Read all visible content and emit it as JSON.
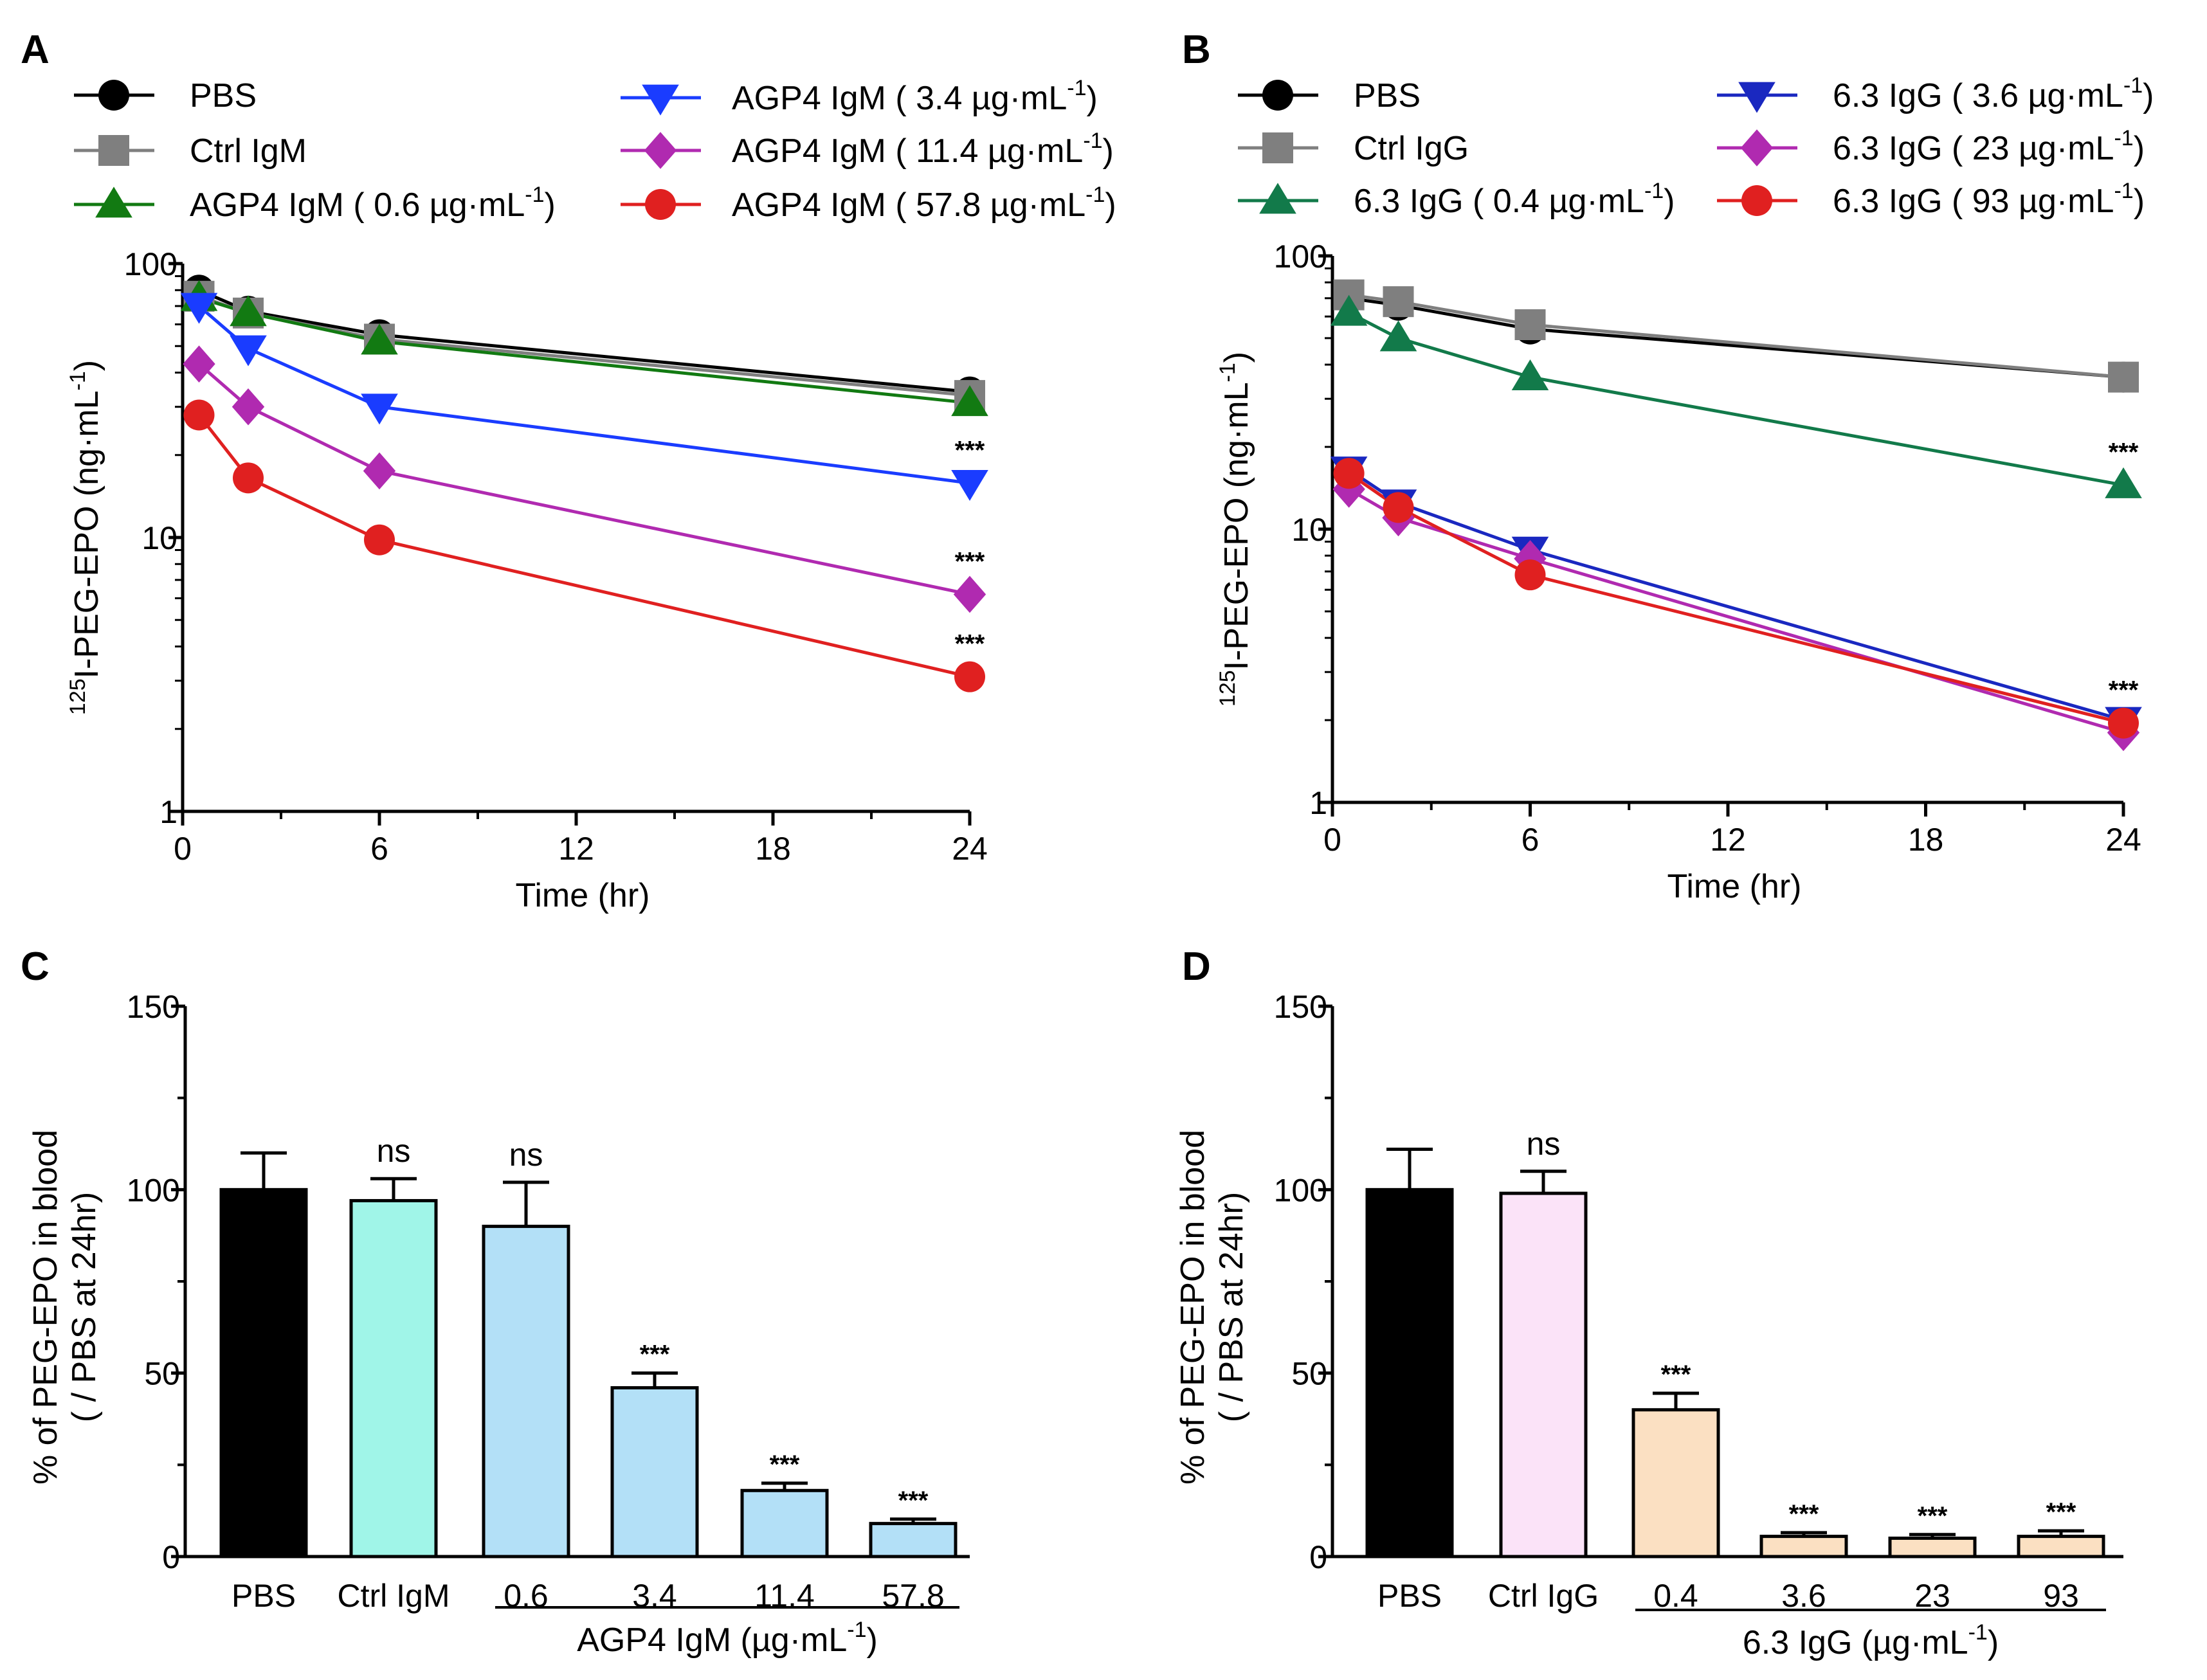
{
  "chart_data": [
    {
      "panel": "A",
      "type": "line",
      "yscale": "log",
      "xlabel": "Time (hr)",
      "ylabel_sup": "125",
      "ylabel": "I-PEG-EPO (ng·mL",
      "ylabel_unit_sup": "-1",
      "ylabel_tail": ")",
      "xlim": [
        0,
        24
      ],
      "ylim": [
        1,
        100
      ],
      "xticks": [
        "0",
        "6",
        "12",
        "18",
        "24"
      ],
      "yticks": [
        "1",
        "10",
        "100"
      ],
      "x": [
        0.5,
        2,
        6,
        24
      ],
      "series": [
        {
          "name": "PBS",
          "color": "#000000",
          "marker": "circle",
          "values": [
            80,
            67,
            55,
            34
          ]
        },
        {
          "name": "Ctrl IgM",
          "color": "#7f7f7f",
          "marker": "square",
          "values": [
            76,
            66,
            53,
            33
          ]
        },
        {
          "name": "AGP4 IgM ( 0.6 µg·mL",
          "sup": "-1",
          "close": ")",
          "color": "#127a12",
          "marker": "triangle-up",
          "values": [
            75,
            66,
            52,
            31
          ]
        },
        {
          "name": "AGP4 IgM ( 3.4 µg·mL",
          "sup": "-1",
          "close": ")",
          "color": "#1a3cff",
          "marker": "triangle-down",
          "values": [
            70,
            49,
            30,
            15.8
          ],
          "sig": "***"
        },
        {
          "name": "AGP4 IgM ( 11.4 µg·mL",
          "sup": "-1",
          "close": ")",
          "color": "#b02ab0",
          "marker": "diamond",
          "values": [
            43,
            30,
            17.5,
            6.2
          ],
          "sig": "***"
        },
        {
          "name": "AGP4 IgM ( 57.8 µg·mL",
          "sup": "-1",
          "close": ")",
          "color": "#e02020",
          "marker": "circle",
          "values": [
            28,
            16.5,
            9.8,
            3.1
          ],
          "sig": "***"
        }
      ]
    },
    {
      "panel": "B",
      "type": "line",
      "yscale": "log",
      "xlabel": "Time (hr)",
      "ylabel_sup": "125",
      "ylabel": "I-PEG-EPO (ng·mL",
      "ylabel_unit_sup": "-1",
      "ylabel_tail": ")",
      "xlim": [
        0,
        24
      ],
      "ylim": [
        1,
        100
      ],
      "xticks": [
        "0",
        "6",
        "12",
        "18",
        "24"
      ],
      "yticks": [
        "1",
        "10",
        "100"
      ],
      "x": [
        0.5,
        2,
        6,
        24
      ],
      "series": [
        {
          "name": "PBS",
          "color": "#000000",
          "marker": "circle",
          "values": [
            70,
            66,
            54,
            36
          ]
        },
        {
          "name": "Ctrl IgG",
          "color": "#7f7f7f",
          "marker": "square",
          "values": [
            72,
            68,
            56,
            36
          ]
        },
        {
          "name": "6.3 IgG ( 0.4 µg·mL",
          "sup": "-1",
          "close": ")",
          "color": "#127a4a",
          "marker": "triangle-up",
          "values": [
            62,
            50,
            36,
            14.5
          ],
          "sig": "***"
        },
        {
          "name": "6.3 IgG ( 3.6 µg·mL",
          "sup": "-1",
          "close": ")",
          "color": "#1a28c0",
          "marker": "triangle-down",
          "values": [
            16.5,
            12.5,
            8.4,
            2.0
          ]
        },
        {
          "name": "6.3 IgG ( 23 µg·mL",
          "sup": "-1",
          "close": ")",
          "color": "#b02ab0",
          "marker": "diamond",
          "values": [
            14,
            11,
            7.8,
            1.8
          ]
        },
        {
          "name": "6.3 IgG ( 93 µg·mL",
          "sup": "-1",
          "close": ")",
          "color": "#e02020",
          "marker": "circle",
          "values": [
            16,
            12,
            6.8,
            1.95
          ],
          "sig": "***"
        }
      ]
    },
    {
      "panel": "C",
      "type": "bar",
      "ylabel_line1": "% of PEG-EPO in blood",
      "ylabel_line2": "( / PBS at 24hr)",
      "ylim": [
        0,
        150
      ],
      "yticks": [
        "0",
        "50",
        "100",
        "150"
      ],
      "categories": [
        "PBS",
        "Ctrl IgM",
        "0.6",
        "3.4",
        "11.4",
        "57.8"
      ],
      "values": [
        100,
        97,
        90,
        46,
        18,
        9
      ],
      "errors": [
        10,
        6,
        12,
        4,
        2,
        1.2
      ],
      "colors": [
        "#000000",
        "#a0f5e8",
        "#b3e0f7",
        "#b3e0f7",
        "#b3e0f7",
        "#b3e0f7"
      ],
      "sig": [
        "",
        "ns",
        "ns",
        "***",
        "***",
        "***"
      ],
      "group_label": "AGP4 IgM (µg·mL",
      "group_sup": "-1",
      "group_close": ")"
    },
    {
      "panel": "D",
      "type": "bar",
      "ylabel_line1": "% of PEG-EPO in blood",
      "ylabel_line2": "( / PBS at 24hr)",
      "ylim": [
        0,
        150
      ],
      "yticks": [
        "0",
        "50",
        "100",
        "150"
      ],
      "categories": [
        "PBS",
        "Ctrl IgG",
        "0.4",
        "3.6",
        "23",
        "93"
      ],
      "values": [
        100,
        99,
        40,
        5.5,
        5,
        5.5
      ],
      "errors": [
        11,
        6,
        4.5,
        1,
        1,
        1.5
      ],
      "colors": [
        "#000000",
        "#fbe3f8",
        "#fbe0c2",
        "#fbe0c2",
        "#fbe0c2",
        "#fbe0c2"
      ],
      "sig": [
        "",
        "ns",
        "***",
        "***",
        "***",
        "***"
      ],
      "group_label": "6.3 IgG (µg·mL",
      "group_sup": "-1",
      "group_close": ")"
    }
  ]
}
